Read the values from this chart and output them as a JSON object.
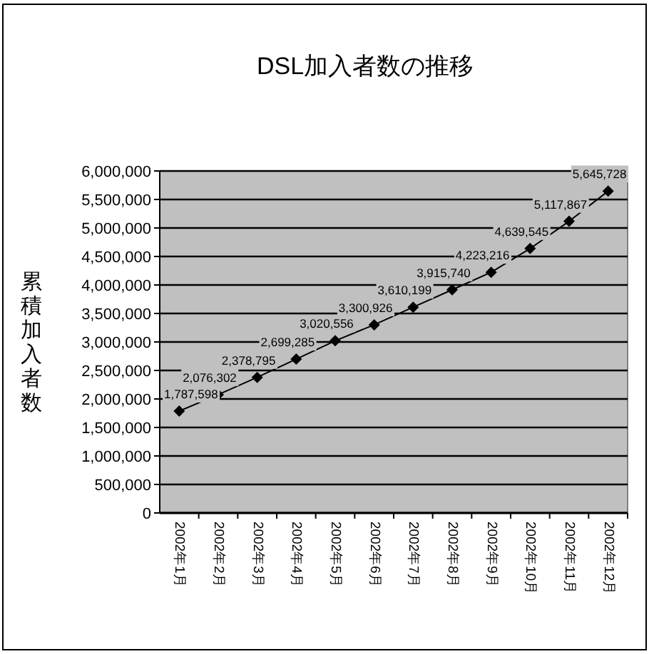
{
  "chart_data": {
    "type": "line",
    "title": "DSL加入者数の推移",
    "ylabel": "累積加入者数",
    "categories": [
      "2002年1月",
      "2002年2月",
      "2002年3月",
      "2002年4月",
      "2002年5月",
      "2002年6月",
      "2002年7月",
      "2002年8月",
      "2002年9月",
      "2002年10月",
      "2002年11月",
      "2002年12月"
    ],
    "series": [
      {
        "color": "#000000",
        "values": [
          1787598,
          2076302,
          2378795,
          2699285,
          3020556,
          3300926,
          3610199,
          3915740,
          4223216,
          4639545,
          5117867,
          5645728
        ],
        "value_labels": [
          "1,787,598",
          "2,076,302",
          "2,378,795",
          "2,699,285",
          "3,020,556",
          "3,300,926",
          "3,610,199",
          "3,915,740",
          "4,223,216",
          "4,639,545",
          "5,117,867",
          "5,645,728"
        ]
      }
    ],
    "ylim": [
      0,
      6000000
    ],
    "yticks": [
      {
        "value": 0,
        "label": "0"
      },
      {
        "value": 500000,
        "label": "500,000"
      },
      {
        "value": 1000000,
        "label": "1,000,000"
      },
      {
        "value": 1500000,
        "label": "1,500,000"
      },
      {
        "value": 2000000,
        "label": "2,000,000"
      },
      {
        "value": 2500000,
        "label": "2,500,000"
      },
      {
        "value": 3000000,
        "label": "3,000,000"
      },
      {
        "value": 3500000,
        "label": "3,500,000"
      },
      {
        "value": 4000000,
        "label": "4,000,000"
      },
      {
        "value": 4500000,
        "label": "4,500,000"
      },
      {
        "value": 5000000,
        "label": "5,000,000"
      },
      {
        "value": 5500000,
        "label": "5,500,000"
      },
      {
        "value": 6000000,
        "label": "6,000,000"
      }
    ],
    "grid": "y",
    "marker": "diamond",
    "line_style": "solid"
  }
}
